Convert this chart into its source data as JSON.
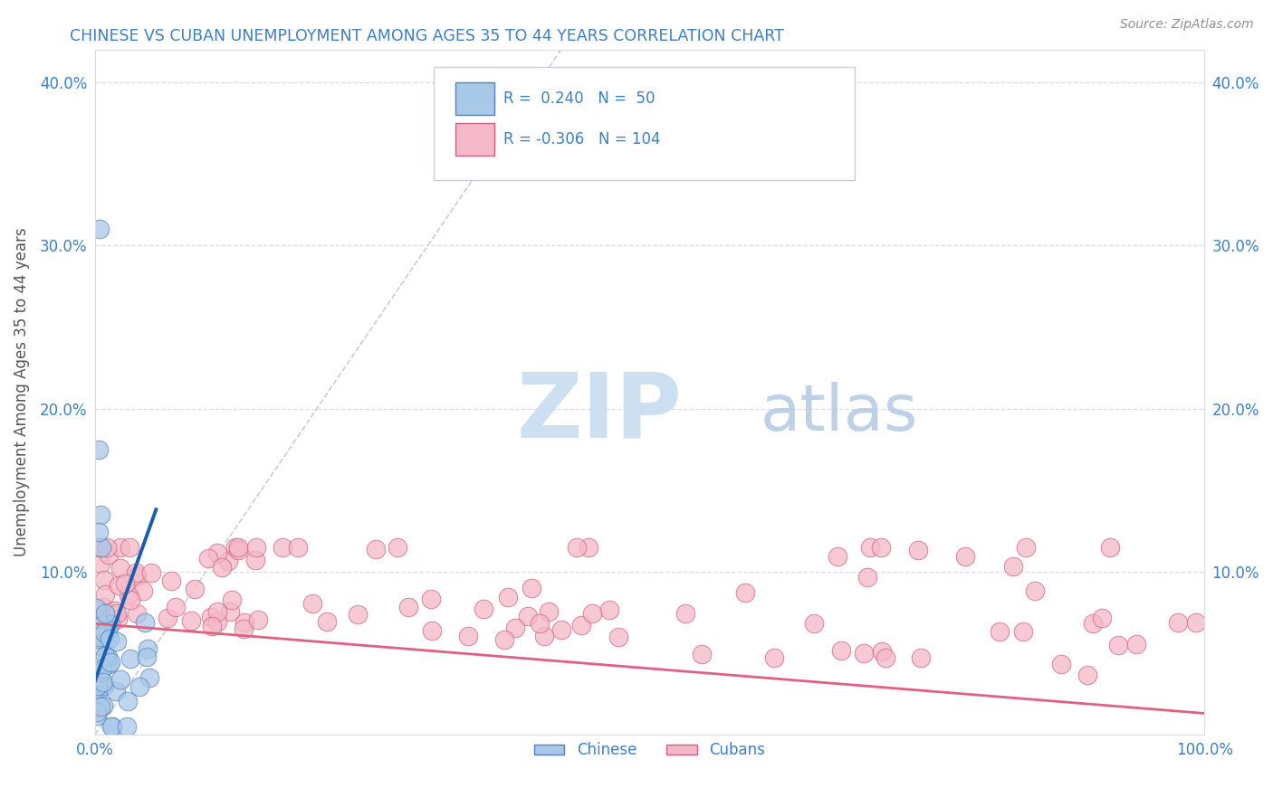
{
  "title": "CHINESE VS CUBAN UNEMPLOYMENT AMONG AGES 35 TO 44 YEARS CORRELATION CHART",
  "source": "Source: ZipAtlas.com",
  "ylabel": "Unemployment Among Ages 35 to 44 years",
  "xlim": [
    0.0,
    1.0
  ],
  "ylim": [
    0.0,
    0.42
  ],
  "xticks": [
    0.0,
    1.0
  ],
  "xticklabels": [
    "0.0%",
    "100.0%"
  ],
  "yticks": [
    0.0,
    0.1,
    0.2,
    0.3,
    0.4
  ],
  "yticklabels": [
    "",
    "10.0%",
    "20.0%",
    "30.0%",
    "40.0%"
  ],
  "chinese_R": 0.24,
  "chinese_N": 50,
  "cuban_R": -0.306,
  "cuban_N": 104,
  "title_color": "#3d7fc1",
  "axis_color": "#3d7fc1",
  "watermark_zip_color": "#c8ddf0",
  "watermark_atlas_color": "#b8cce4",
  "chinese_color": "#a8c8e8",
  "chinese_edge_color": "#5580c0",
  "cuban_color": "#f5b8c8",
  "cuban_edge_color": "#d06080",
  "blue_line_color": "#1a5db0",
  "pink_line_color": "#e06080",
  "diag_line_color": "#c0c8d8",
  "grid_color": "#d8dde8",
  "background_color": "#ffffff",
  "legend_border_color": "#c8ccd8",
  "source_color": "#909090"
}
